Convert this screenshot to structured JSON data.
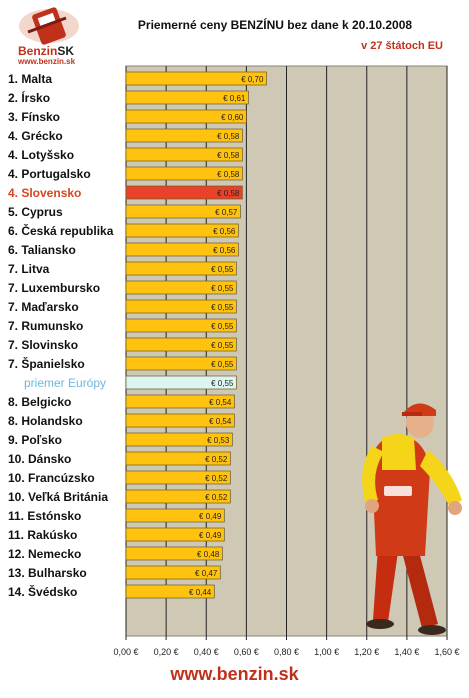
{
  "header": {
    "logo_brand": "Benzin",
    "logo_brand_suffix": "SK",
    "logo_url": "www.benzin.sk",
    "title": "Priemerné ceny BENZÍNU bez dane k 20.10.2008",
    "subtitle": "v 27 štátoch EU"
  },
  "footer": {
    "url": "www.benzin.sk"
  },
  "colors": {
    "plot_bg": "#cfc8b4",
    "bar": "#ffc20e",
    "bar_highlight": "#e8432a",
    "bar_average": "#dcf5f1",
    "highlight_text": "#d9461e",
    "average_text": "#6bb8e0",
    "brand": "#c0311c"
  },
  "icons": {
    "illustration": "gas-station-worker-icon"
  },
  "chart_data": {
    "type": "bar",
    "orientation": "horizontal",
    "title": "Priemerné ceny BENZÍNU bez dane k 20.10.2008",
    "subtitle": "v 27 štátoch EU",
    "xlim": [
      0,
      1.6
    ],
    "x_ticks": [
      "0,00 €",
      "0,20 €",
      "0,40 €",
      "0,60 €",
      "0,80 €",
      "1,00 €",
      "1,20 €",
      "1,40 €",
      "1,60 €"
    ],
    "grid": true,
    "categories": [
      "1. Malta",
      "2. Írsko",
      "3. Fínsko",
      "4. Grécko",
      "4. Lotyšsko",
      "4. Portugalsko",
      "4. Slovensko",
      "5. Cyprus",
      "6. Česká republika",
      "6. Taliansko",
      "7. Litva",
      "7. Luxembursko",
      "7. Maďarsko",
      "7. Rumunsko",
      "7. Slovinsko",
      "7. Španielsko",
      "priemer Európy",
      "8. Belgicko",
      "8. Holandsko",
      "9. Poľsko",
      "10. Dánsko",
      "10. Francúzsko",
      "10. Veľká Británia",
      "11. Estónsko",
      "11. Rakúsko",
      "12. Nemecko",
      "13. Bulharsko",
      "14. Švédsko"
    ],
    "values": [
      0.7,
      0.61,
      0.6,
      0.58,
      0.58,
      0.58,
      0.58,
      0.57,
      0.56,
      0.56,
      0.55,
      0.55,
      0.55,
      0.55,
      0.55,
      0.55,
      0.55,
      0.54,
      0.54,
      0.53,
      0.52,
      0.52,
      0.52,
      0.49,
      0.49,
      0.48,
      0.47,
      0.44
    ],
    "value_labels": [
      "€ 0,70",
      "€ 0,61",
      "€ 0,60",
      "€ 0,58",
      "€ 0,58",
      "€ 0,58",
      "€ 0,58",
      "€ 0,57",
      "€ 0,56",
      "€ 0,56",
      "€ 0,55",
      "€ 0,55",
      "€ 0,55",
      "€ 0,55",
      "€ 0,55",
      "€ 0,55",
      "€ 0,55",
      "€ 0,54",
      "€ 0,54",
      "€ 0,53",
      "€ 0,52",
      "€ 0,52",
      "€ 0,52",
      "€ 0,49",
      "€ 0,49",
      "€ 0,48",
      "€ 0,47",
      "€ 0,44"
    ],
    "highlight": "4. Slovensko",
    "average": "priemer Európy"
  }
}
